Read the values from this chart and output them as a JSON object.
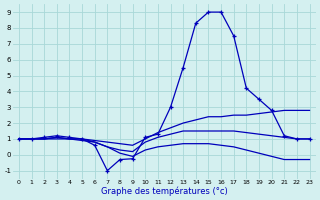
{
  "title": "",
  "xlabel": "Graphe des températures (°c)",
  "ylabel": "",
  "background_color": "#d4f0f0",
  "grid_color": "#a8d8d8",
  "line_color": "#0000bb",
  "ylim": [
    -1.5,
    9.5
  ],
  "xlim": [
    -0.5,
    23.5
  ],
  "yticks": [
    -1,
    0,
    1,
    2,
    3,
    4,
    5,
    6,
    7,
    8,
    9
  ],
  "xticks": [
    0,
    1,
    2,
    3,
    4,
    5,
    6,
    7,
    8,
    9,
    10,
    11,
    12,
    13,
    14,
    15,
    16,
    17,
    18,
    19,
    20,
    21,
    22,
    23
  ],
  "series": [
    {
      "x": [
        0,
        1,
        2,
        3,
        4,
        5,
        6,
        7,
        8,
        9,
        10,
        11,
        12,
        13,
        14,
        15,
        16,
        17,
        18,
        19,
        20,
        21,
        22,
        23
      ],
      "y": [
        1.0,
        1.0,
        1.1,
        1.2,
        1.1,
        1.0,
        0.6,
        -1.0,
        -0.3,
        -0.25,
        1.1,
        1.3,
        3.0,
        5.5,
        8.3,
        9.0,
        9.0,
        7.5,
        4.2,
        3.5,
        2.8,
        1.2,
        1.0,
        1.0
      ],
      "marker": "+"
    },
    {
      "x": [
        0,
        1,
        2,
        3,
        4,
        5,
        6,
        7,
        8,
        9,
        10,
        11,
        12,
        13,
        14,
        15,
        16,
        17,
        18,
        19,
        20,
        21,
        22,
        23
      ],
      "y": [
        1.0,
        1.0,
        1.0,
        1.1,
        1.0,
        1.0,
        0.9,
        0.8,
        0.7,
        0.6,
        1.0,
        1.4,
        1.7,
        2.0,
        2.2,
        2.4,
        2.4,
        2.5,
        2.5,
        2.6,
        2.7,
        2.8,
        2.8,
        2.8
      ],
      "marker": null
    },
    {
      "x": [
        0,
        1,
        2,
        3,
        4,
        5,
        6,
        7,
        8,
        9,
        10,
        11,
        12,
        13,
        14,
        15,
        16,
        17,
        18,
        19,
        20,
        21,
        22,
        23
      ],
      "y": [
        1.0,
        1.0,
        1.0,
        1.1,
        1.0,
        1.0,
        0.8,
        0.5,
        0.3,
        0.2,
        0.8,
        1.1,
        1.3,
        1.5,
        1.5,
        1.5,
        1.5,
        1.5,
        1.4,
        1.3,
        1.2,
        1.1,
        1.0,
        1.0
      ],
      "marker": null
    },
    {
      "x": [
        0,
        1,
        2,
        3,
        4,
        5,
        6,
        7,
        8,
        9,
        10,
        11,
        12,
        13,
        14,
        15,
        16,
        17,
        18,
        19,
        20,
        21,
        22,
        23
      ],
      "y": [
        1.0,
        1.0,
        1.0,
        1.0,
        1.0,
        0.9,
        0.8,
        0.5,
        0.1,
        -0.1,
        0.3,
        0.5,
        0.6,
        0.7,
        0.7,
        0.7,
        0.6,
        0.5,
        0.3,
        0.1,
        -0.1,
        -0.3,
        -0.3,
        -0.3
      ],
      "marker": null
    }
  ]
}
